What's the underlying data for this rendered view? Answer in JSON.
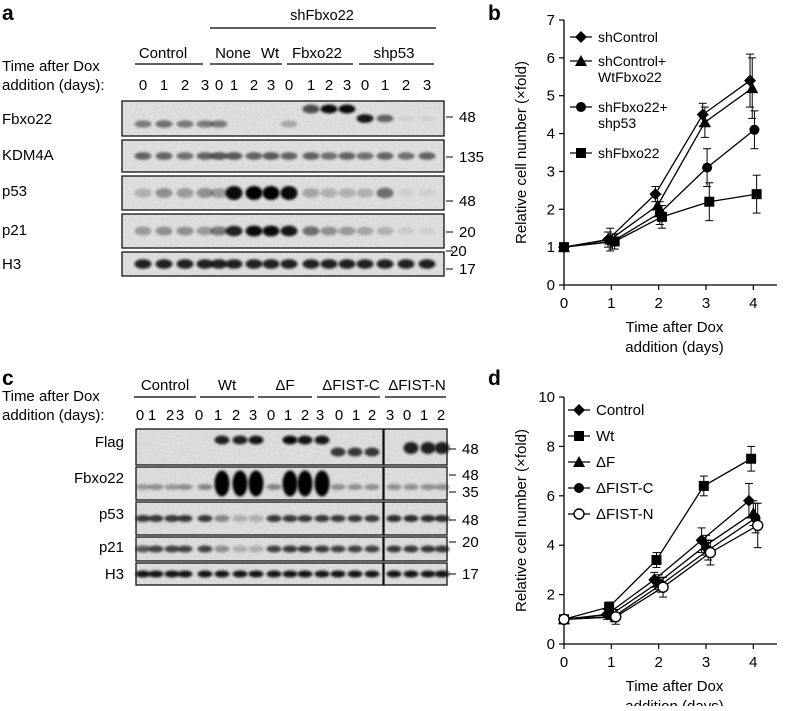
{
  "panel_a": {
    "label": "a",
    "group_header": "shFbxo22",
    "groups": [
      "Control",
      "None",
      "Wt",
      "Fbxo22",
      "shp53"
    ],
    "time_label_1": "Time after Dox",
    "time_label_2": "addition (days):",
    "lane_days": [
      "0",
      "1",
      "2",
      "3",
      "0",
      "1",
      "2",
      "3",
      "0",
      "1",
      "2",
      "3",
      "0",
      "1",
      "2",
      "3"
    ],
    "rows": [
      {
        "name": "Fbxo22",
        "mw": "48"
      },
      {
        "name": "KDM4A",
        "mw": "135"
      },
      {
        "name": "p53",
        "mw": "48"
      },
      {
        "name": "p21",
        "mw": "20"
      },
      {
        "name": "H3",
        "mw": "17"
      }
    ],
    "extra_mw": "20"
  },
  "panel_c": {
    "label": "c",
    "groups": [
      "Control",
      "Wt",
      "ΔF",
      "ΔFIST-C",
      "ΔFIST-N"
    ],
    "time_label_1": "Time after Dox",
    "time_label_2": "addition (days):",
    "lane_days": [
      "0",
      "1",
      "2",
      "3",
      "0",
      "1",
      "2",
      "3",
      "0",
      "1",
      "2",
      "3",
      "0",
      "1",
      "2",
      "3",
      "0",
      "1",
      "2",
      "3"
    ],
    "rows": [
      {
        "name": "Flag",
        "mw": [
          "48"
        ]
      },
      {
        "name": "Fbxo22",
        "mw": [
          "48",
          "35"
        ]
      },
      {
        "name": "p53",
        "mw": [
          "48"
        ]
      },
      {
        "name": "p21",
        "mw": [
          "20"
        ]
      },
      {
        "name": "H3",
        "mw": [
          "17"
        ]
      }
    ]
  },
  "chart_data": [
    {
      "panel": "b",
      "type": "line",
      "xlabel": "Time after Dox addition (days)",
      "xlabel_lines": [
        "Time after Dox",
        "addition (days)"
      ],
      "ylabel": "Relative cell number (×fold)",
      "xlim": [
        0,
        4.5
      ],
      "ylim": [
        0,
        7
      ],
      "xticks": [
        0,
        1,
        2,
        3,
        4
      ],
      "yticks": [
        0,
        1,
        2,
        3,
        4,
        5,
        6,
        7
      ],
      "legend_position": "top-left",
      "x": [
        0,
        1,
        2,
        3,
        4
      ],
      "series": [
        {
          "name": "shControl",
          "legend_lines": [
            "shControl"
          ],
          "marker": "diamond",
          "values": [
            1,
            1.2,
            2.4,
            4.5,
            5.4
          ],
          "errors": [
            0.1,
            0.2,
            0.2,
            0.3,
            0.7
          ]
        },
        {
          "name": "shControl+ WtFbxo22",
          "legend_lines": [
            "shControl+",
            "WtFbxo22"
          ],
          "marker": "triangle",
          "values": [
            1,
            1.2,
            2.1,
            4.3,
            5.2
          ],
          "errors": [
            0.1,
            0.3,
            0.3,
            0.4,
            0.8
          ]
        },
        {
          "name": "shFbxo22+ shp53",
          "legend_lines": [
            "shFbxo22+",
            "shp53"
          ],
          "marker": "circle",
          "values": [
            1,
            1.15,
            1.9,
            3.1,
            4.1
          ],
          "errors": [
            0.1,
            0.2,
            0.3,
            0.5,
            0.5
          ]
        },
        {
          "name": "shFbxo22",
          "legend_lines": [
            "shFbxo22"
          ],
          "marker": "square",
          "values": [
            1,
            1.15,
            1.8,
            2.2,
            2.4
          ],
          "errors": [
            0.1,
            0.2,
            0.3,
            0.5,
            0.5
          ]
        }
      ]
    },
    {
      "panel": "d",
      "type": "line",
      "xlabel": "Time after Dox addition (days)",
      "xlabel_lines": [
        "Time after Dox",
        "addition (days)"
      ],
      "ylabel": "Relative cell number (×fold)",
      "xlim": [
        0,
        4.5
      ],
      "ylim": [
        0,
        10
      ],
      "xticks": [
        0,
        1,
        2,
        3,
        4
      ],
      "yticks": [
        0,
        2,
        4,
        6,
        8,
        10
      ],
      "legend_position": "top-left",
      "x": [
        0,
        1,
        2,
        3,
        4
      ],
      "series": [
        {
          "name": "Control",
          "legend_lines": [
            "Control"
          ],
          "marker": "diamond",
          "values": [
            1,
            1.2,
            2.6,
            4.2,
            5.8
          ],
          "errors": [
            0.1,
            0.2,
            0.3,
            0.5,
            0.7
          ]
        },
        {
          "name": "Wt",
          "legend_lines": [
            "Wt"
          ],
          "marker": "square",
          "values": [
            1,
            1.5,
            3.4,
            6.4,
            7.5
          ],
          "errors": [
            0.1,
            0.2,
            0.3,
            0.4,
            0.5
          ]
        },
        {
          "name": "ΔF",
          "legend_lines": [
            "ΔF"
          ],
          "marker": "triangle",
          "values": [
            1,
            1.2,
            2.5,
            4.0,
            5.3
          ],
          "errors": [
            0.1,
            0.2,
            0.3,
            0.4,
            0.5
          ]
        },
        {
          "name": "ΔFIST-C",
          "legend_lines": [
            "ΔFIST-C"
          ],
          "marker": "circle",
          "values": [
            1,
            1.1,
            2.4,
            3.8,
            5.1
          ],
          "errors": [
            0.1,
            0.2,
            0.3,
            0.4,
            0.6
          ]
        },
        {
          "name": "ΔFIST-N",
          "legend_lines": [
            "ΔFIST-N"
          ],
          "marker": "open-circle",
          "values": [
            1,
            1.1,
            2.3,
            3.7,
            4.8
          ],
          "errors": [
            0.1,
            0.3,
            0.4,
            0.5,
            0.9
          ]
        }
      ]
    }
  ]
}
